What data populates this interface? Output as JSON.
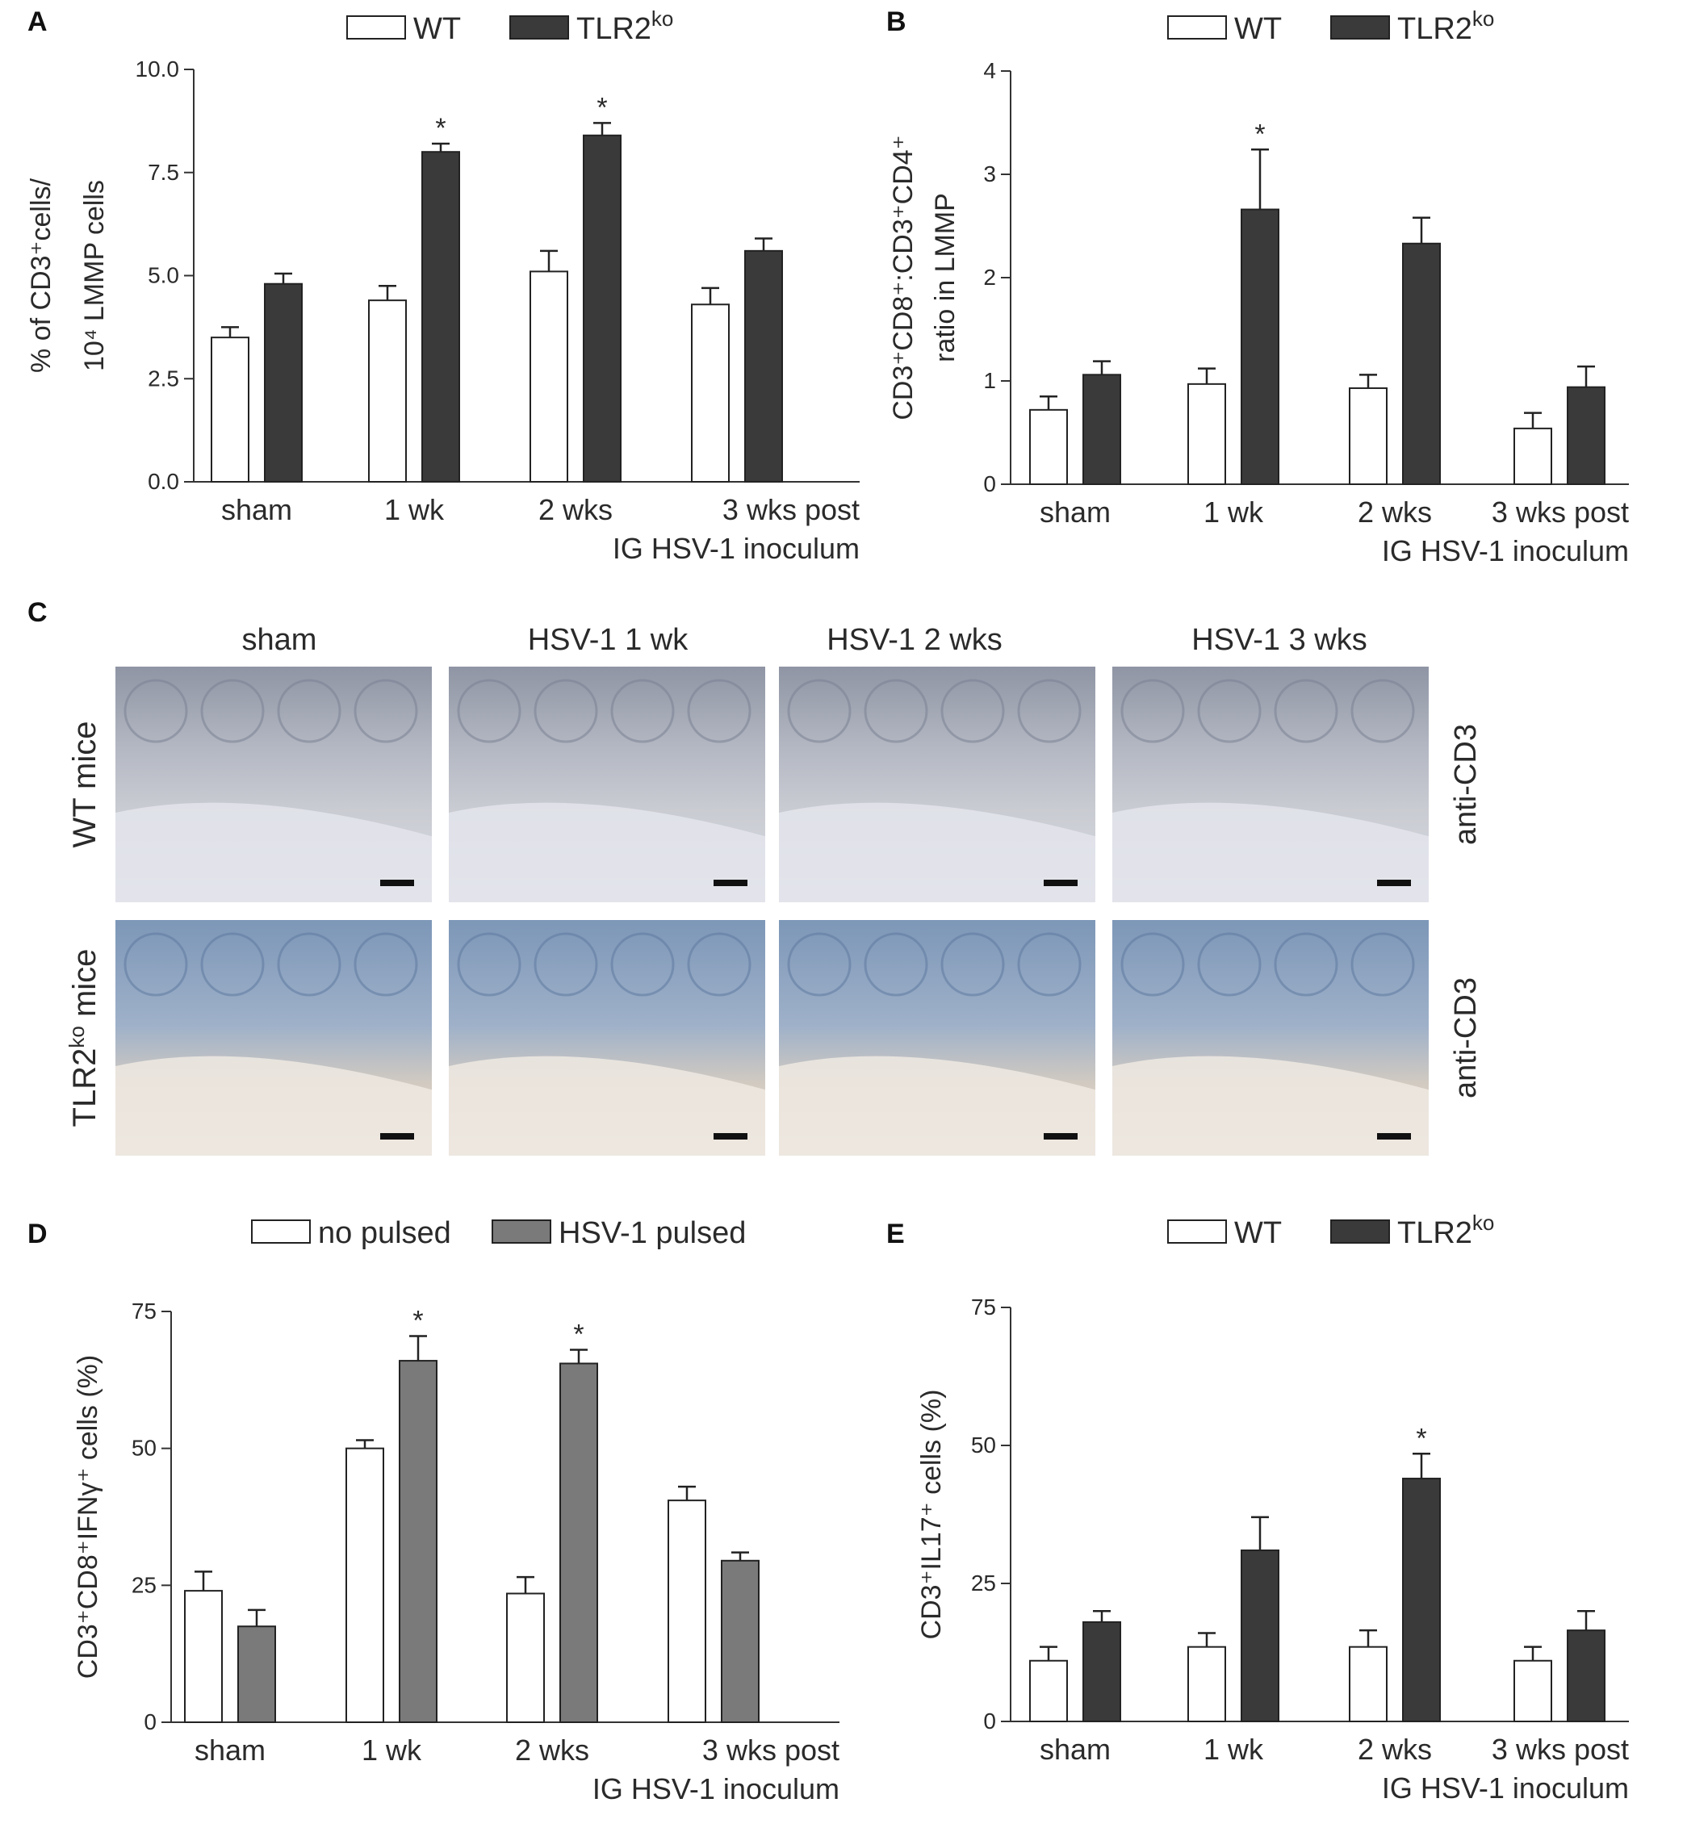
{
  "panels": {
    "A": "A",
    "B": "B",
    "C": "C",
    "D": "D",
    "E": "E"
  },
  "legend_wt_tlr": {
    "wt": "WT",
    "tlr": "TLR2",
    "tlr_sup": "ko"
  },
  "legend_pulse": {
    "no_pulsed": "no pulsed",
    "hsv_pulsed": "HSV-1 pulsed"
  },
  "categories": [
    "sham",
    "1 wk",
    "2 wks",
    "3 wks post"
  ],
  "xaxis_sub": "IG HSV-1 inoculum",
  "micro": {
    "col_titles": [
      "sham",
      "HSV-1 1 wk",
      "HSV-1 2 wks",
      "HSV-1 3 wks"
    ],
    "row_wt": "WT mice",
    "row_tlr_main": "TLR2",
    "row_tlr_sup": "ko",
    "row_tlr_tail": " mice",
    "stain": "anti-CD3"
  },
  "chart_data": [
    {
      "id": "A",
      "type": "bar",
      "ylabel_line1": "% of CD3⁺cells/",
      "ylabel_line2": "10⁴ LMMP cells",
      "yticks": [
        "0.0",
        "2.5",
        "5.0",
        "7.5",
        "10.0"
      ],
      "ylim": [
        0,
        10
      ],
      "categories": [
        "sham",
        "1 wk",
        "2 wks",
        "3 wks post"
      ],
      "series": [
        {
          "name": "WT",
          "values": [
            3.5,
            4.4,
            5.1,
            4.3
          ],
          "errors": [
            0.25,
            0.35,
            0.5,
            0.4
          ],
          "color": "#ffffff"
        },
        {
          "name": "TLR2ko",
          "values": [
            4.8,
            8.0,
            8.4,
            5.6
          ],
          "errors": [
            0.25,
            0.2,
            0.3,
            0.3
          ],
          "color": "#3a3a3a"
        }
      ],
      "significance": [
        false,
        true,
        true,
        false
      ]
    },
    {
      "id": "B",
      "type": "bar",
      "ylabel_line1": "CD3⁺CD8⁺:CD3⁺CD4⁺",
      "ylabel_line2": "ratio in LMMP",
      "yticks": [
        "0",
        "1",
        "2",
        "3",
        "4"
      ],
      "ylim": [
        0,
        4
      ],
      "categories": [
        "sham",
        "1 wk",
        "2 wks",
        "3 wks post"
      ],
      "series": [
        {
          "name": "WT",
          "values": [
            0.72,
            0.97,
            0.93,
            0.54
          ],
          "errors": [
            0.13,
            0.15,
            0.13,
            0.15
          ],
          "color": "#ffffff"
        },
        {
          "name": "TLR2ko",
          "values": [
            1.06,
            2.66,
            2.33,
            0.94
          ],
          "errors": [
            0.13,
            0.58,
            0.25,
            0.2
          ],
          "color": "#3a3a3a"
        }
      ],
      "significance": [
        false,
        true,
        false,
        false
      ]
    },
    {
      "id": "D",
      "type": "bar",
      "ylabel_line1": "CD3⁺CD8⁺IFNγ⁺ cells (%)",
      "ylabel_line2": "",
      "yticks": [
        "0",
        "25",
        "50",
        "75"
      ],
      "ylim": [
        0,
        75
      ],
      "categories": [
        "sham",
        "1 wk",
        "2 wks",
        "3 wks post"
      ],
      "series": [
        {
          "name": "no pulsed",
          "values": [
            24,
            50,
            23.5,
            40.5
          ],
          "errors": [
            3.5,
            1.5,
            3,
            2.5
          ],
          "color": "#ffffff"
        },
        {
          "name": "HSV-1 pulsed",
          "values": [
            17.5,
            66,
            65.5,
            29.5
          ],
          "errors": [
            3,
            4.5,
            2.5,
            1.5
          ],
          "color": "#7a7a7a"
        }
      ],
      "significance": [
        false,
        true,
        true,
        false
      ]
    },
    {
      "id": "E",
      "type": "bar",
      "ylabel_line1": "CD3⁺IL17⁺ cells (%)",
      "ylabel_line2": "",
      "yticks": [
        "0",
        "25",
        "50",
        "75"
      ],
      "ylim": [
        0,
        75
      ],
      "categories": [
        "sham",
        "1 wk",
        "2 wks",
        "3 wks post"
      ],
      "series": [
        {
          "name": "WT",
          "values": [
            11,
            13.5,
            13.5,
            11
          ],
          "errors": [
            2.5,
            2.5,
            3,
            2.5
          ],
          "color": "#ffffff"
        },
        {
          "name": "TLR2ko",
          "values": [
            18,
            31,
            44,
            16.5
          ],
          "errors": [
            2,
            6,
            4.5,
            3.5
          ],
          "color": "#3a3a3a"
        }
      ],
      "significance": [
        false,
        false,
        true,
        false
      ]
    }
  ]
}
